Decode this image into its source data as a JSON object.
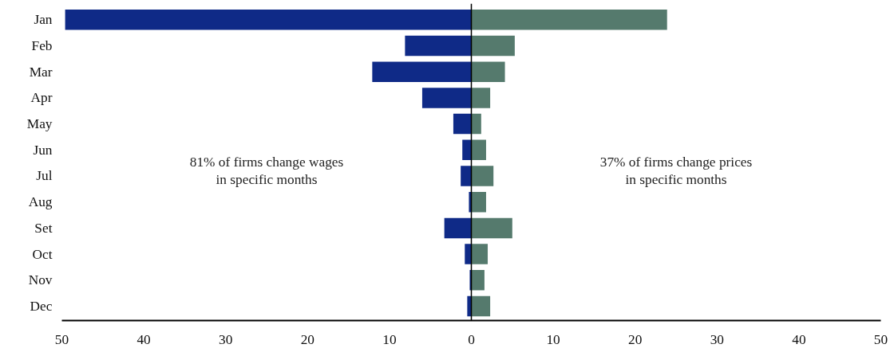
{
  "chart_data": {
    "type": "bar",
    "orientation": "horizontal",
    "categories": [
      "Jan",
      "Feb",
      "Mar",
      "Apr",
      "May",
      "Jun",
      "Jul",
      "Aug",
      "Set",
      "Oct",
      "Nov",
      "Dec"
    ],
    "series": [
      {
        "color": "#0f2a87",
        "values": [
          -49.6,
          -8.1,
          -12.1,
          -6.0,
          -2.2,
          -1.1,
          -1.3,
          -0.3,
          -3.3,
          -0.8,
          -0.2,
          -0.5
        ]
      },
      {
        "color": "#557a6d",
        "values": [
          23.9,
          5.3,
          4.1,
          2.3,
          1.2,
          1.8,
          2.7,
          1.8,
          5.0,
          2.0,
          1.6,
          2.3
        ]
      }
    ],
    "xlim": [
      -50,
      50
    ],
    "xticks": [
      {
        "value": -50,
        "label": "50"
      },
      {
        "value": -40,
        "label": "40"
      },
      {
        "value": -30,
        "label": "30"
      },
      {
        "value": -20,
        "label": "20"
      },
      {
        "value": -10,
        "label": "10"
      },
      0,
      10,
      20,
      30,
      40,
      50
    ],
    "ref_lines": [
      {
        "axis": "x",
        "value": 0,
        "color": "#000000"
      }
    ],
    "annotations": [
      "81% of firms change wages\nin specific months",
      "37% of firms change prices\nin specific months"
    ],
    "stacked": true,
    "grid": false
  }
}
